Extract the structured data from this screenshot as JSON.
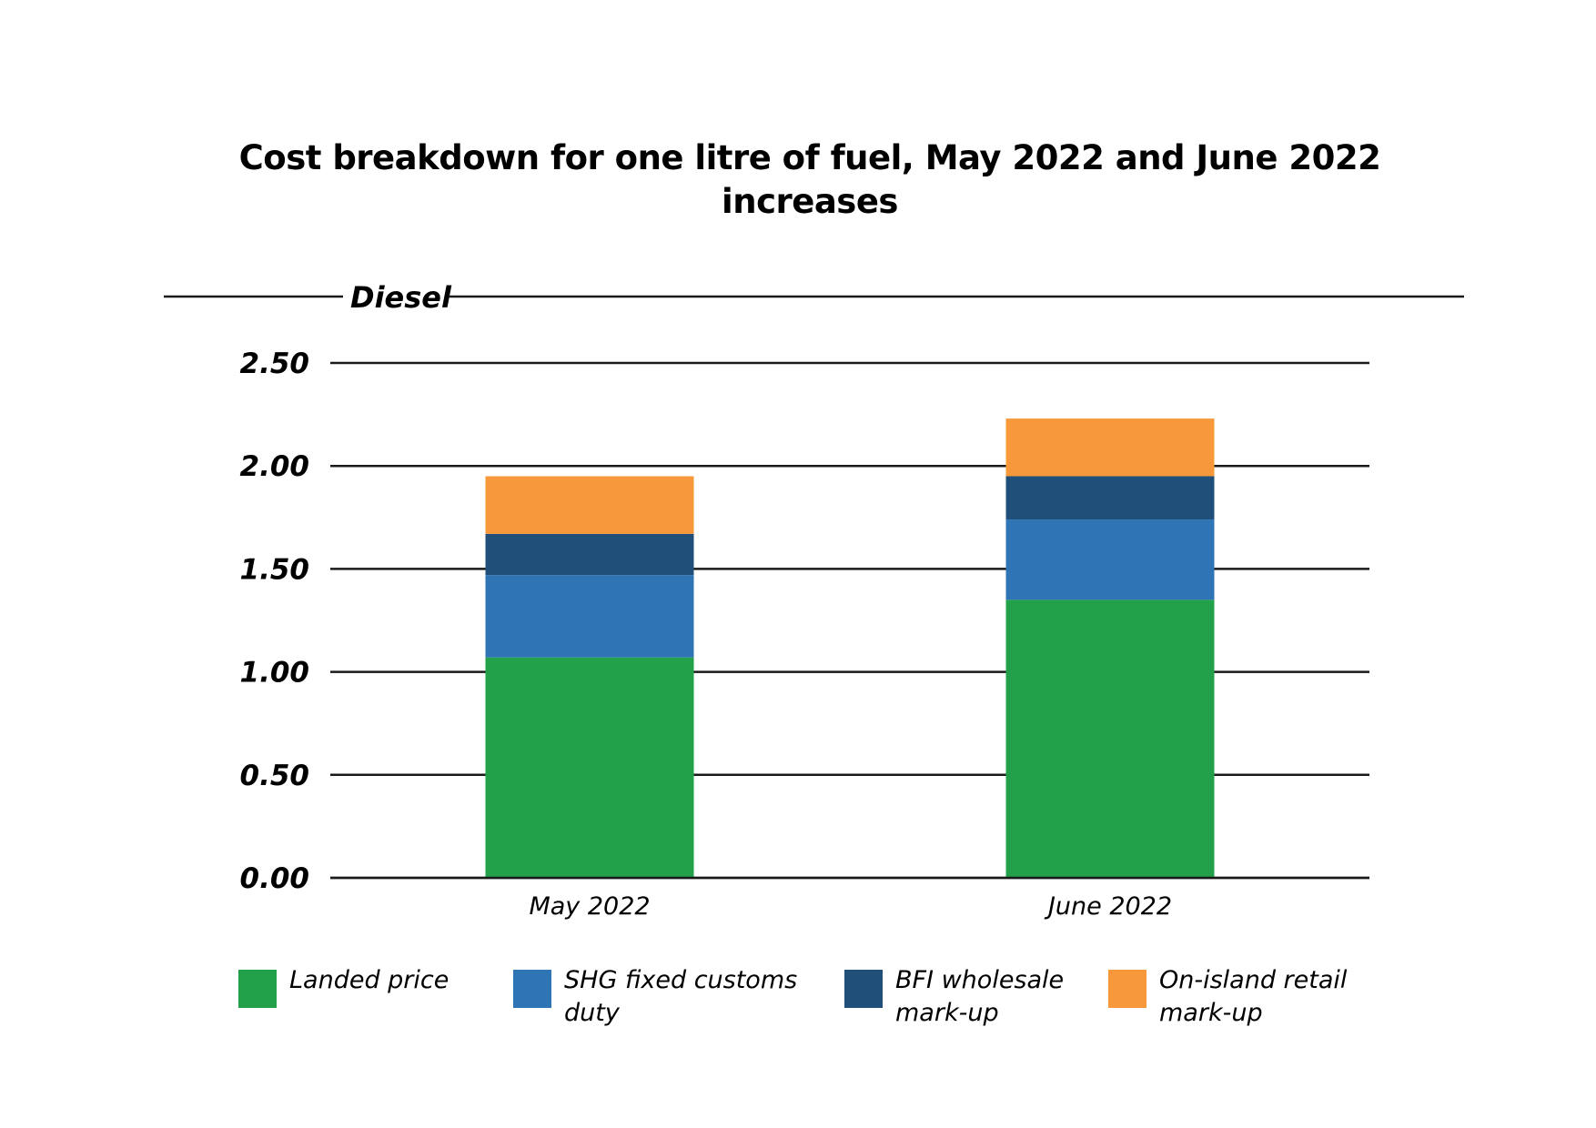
{
  "chart_data": {
    "type": "bar",
    "stacked": true,
    "title": "Cost breakdown for one litre of fuel, May 2022 and June 2022 increases",
    "title_lines": [
      "Cost breakdown for one litre of fuel, May 2022 and June 2022",
      "increases"
    ],
    "panel_label": "Diesel",
    "xlabel": "",
    "ylabel": "",
    "ylim": [
      0,
      2.5
    ],
    "yticks": [
      0,
      0.5,
      1.0,
      1.5,
      2.0,
      2.5
    ],
    "ytick_labels": [
      "0.00",
      "0.50",
      "1.00",
      "1.50",
      "2.00",
      "2.50"
    ],
    "grid": true,
    "categories": [
      "May 2022",
      "June 2022"
    ],
    "series": [
      {
        "name": "Landed price",
        "color": "#23a04a",
        "values": [
          1.07,
          1.35
        ]
      },
      {
        "name": "SHG fixed customs duty",
        "color": "#2f75b5",
        "values": [
          0.4,
          0.39
        ]
      },
      {
        "name": "BFI wholesale mark-up",
        "color": "#204f7a",
        "values": [
          0.2,
          0.21
        ]
      },
      {
        "name": "On-island retail mark-up",
        "color": "#f7983a",
        "values": [
          0.28,
          0.28
        ]
      }
    ],
    "totals": [
      1.95,
      2.23
    ],
    "legend_position": "bottom"
  }
}
